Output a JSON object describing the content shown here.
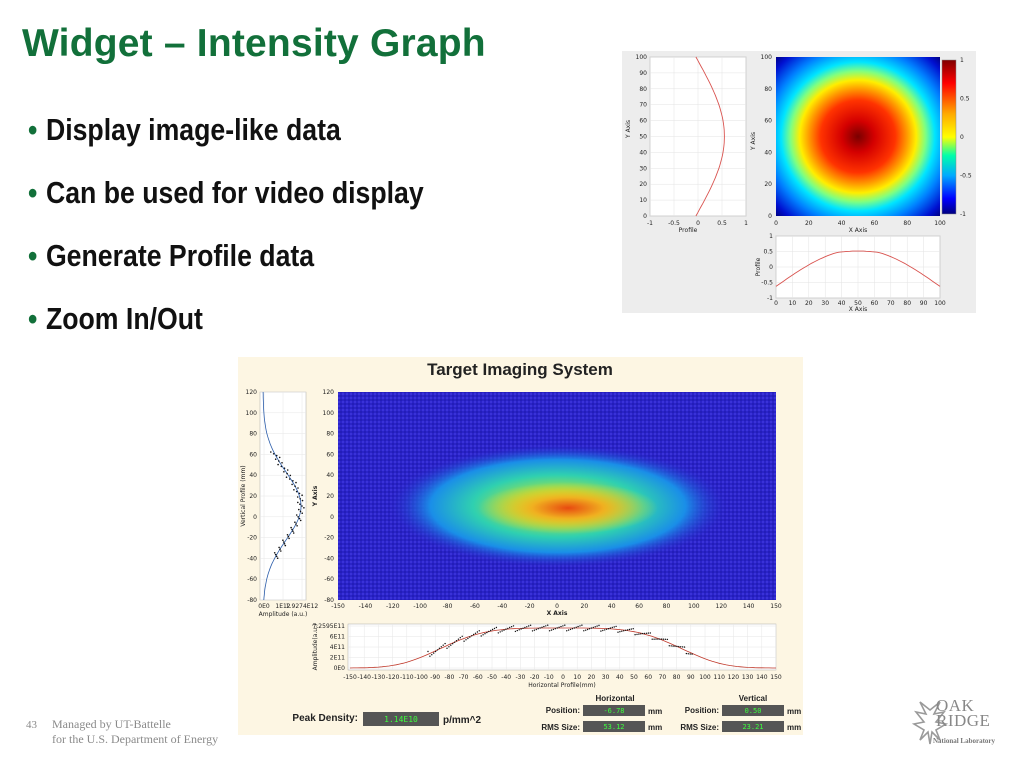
{
  "slide": {
    "title": "Widget – Intensity Graph",
    "bullets": [
      "Display image-like data",
      "Can be used for video display",
      "Generate Profile data",
      "Zoom In/Out"
    ],
    "footer": {
      "page_number": "43",
      "line1": "Managed by UT-Battelle",
      "line2": "for the U.S. Department of Energy"
    },
    "logo": {
      "line1": "OAK",
      "line2": "RIDGE",
      "sub": "National Laboratory"
    }
  },
  "example_graph": {
    "colors": {
      "panel_bg": "#ededed",
      "plot_bg": "#ffffff",
      "profile_line": "#d9534f"
    },
    "y_profile": {
      "ylabel": "Y Axis",
      "xlabel": "Profile",
      "yticks": [
        "0",
        "10",
        "20",
        "30",
        "40",
        "50",
        "60",
        "70",
        "80",
        "90",
        "100"
      ],
      "xticks": [
        "-1",
        "-0.5",
        "0",
        "0.5",
        "1"
      ]
    },
    "intensity": {
      "yticks": [
        "0",
        "20",
        "40",
        "60",
        "80",
        "100"
      ],
      "xticks": [
        "0",
        "20",
        "40",
        "60",
        "80",
        "100"
      ],
      "xlabel": "X Axis",
      "colorbar_ticks": [
        "1",
        "0.5",
        "0",
        "-0.5",
        "-1"
      ]
    },
    "x_profile": {
      "ylabel": "Profile",
      "xlabel": "X Axis",
      "yticks": [
        "1",
        "0.5",
        "0",
        "-0.5",
        "-1"
      ],
      "xticks": [
        "0",
        "10",
        "20",
        "30",
        "40",
        "50",
        "60",
        "70",
        "80",
        "90",
        "100"
      ]
    }
  },
  "target_imaging": {
    "title": "Target Imaging System",
    "colors": {
      "bg": "#fdf6e3",
      "plot_bg": "#2a23c8",
      "fit_line": "#c0392b"
    },
    "vertical_profile": {
      "ylabel": "Vertical Profile (mm)",
      "xlabel": "Amplitude (a.u.)",
      "yticks": [
        "120",
        "100",
        "80",
        "60",
        "40",
        "20",
        "0",
        "-20",
        "-40",
        "-60",
        "-80"
      ],
      "xticks": [
        "0E0",
        "1E12",
        "1.9274E12"
      ]
    },
    "image": {
      "ylabel": "Y Axis",
      "xlabel": "X Axis",
      "yticks": [
        "120",
        "100",
        "80",
        "60",
        "40",
        "20",
        "0",
        "-20",
        "-40",
        "-60",
        "-80"
      ],
      "xticks": [
        "-150",
        "-140",
        "-120",
        "-100",
        "-80",
        "-60",
        "-40",
        "-20",
        "0",
        "20",
        "40",
        "60",
        "80",
        "100",
        "120",
        "140",
        "150"
      ]
    },
    "horizontal_profile": {
      "ylabel": "Amplitude(a.u.)",
      "xlabel": "Horizontal Profile(mm)",
      "yticks": [
        "7.2595E11",
        "6E11",
        "4E11",
        "2E11",
        "0E0"
      ],
      "xticks": [
        "-150",
        "-140",
        "-130",
        "-120",
        "-110",
        "-100",
        "-90",
        "-80",
        "-70",
        "-60",
        "-50",
        "-40",
        "-30",
        "-20",
        "-10",
        "0",
        "10",
        "20",
        "30",
        "40",
        "50",
        "60",
        "70",
        "80",
        "90",
        "100",
        "110",
        "120",
        "130",
        "140",
        "150"
      ]
    },
    "peak_density": {
      "label": "Peak Density:",
      "value": "1.14E10",
      "unit": "p/mm^2"
    },
    "horizontal": {
      "header": "Horizontal",
      "position_label": "Position:",
      "position_value": "-6.78",
      "position_unit": "mm",
      "rms_label": "RMS Size:",
      "rms_value": "53.12",
      "rms_unit": "mm"
    },
    "vertical": {
      "header": "Vertical",
      "position_label": "Position:",
      "position_value": "0.50",
      "position_unit": "mm",
      "rms_label": "RMS Size:",
      "rms_value": "23.21",
      "rms_unit": "mm"
    }
  }
}
